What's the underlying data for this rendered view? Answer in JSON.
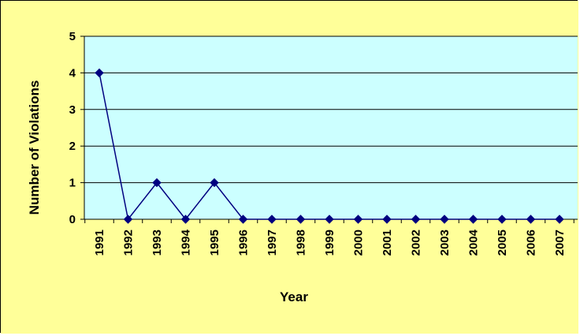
{
  "chart_data": {
    "type": "line",
    "title": "",
    "xlabel": "Year",
    "ylabel": "Number of Violations",
    "categories": [
      "1991",
      "1992",
      "1993",
      "1994",
      "1995",
      "1996",
      "1997",
      "1998",
      "1999",
      "2000",
      "2001",
      "2002",
      "2003",
      "2004",
      "2005",
      "2006",
      "2007"
    ],
    "series": [
      {
        "values": [
          4,
          0,
          1,
          0,
          1,
          0,
          0,
          0,
          0,
          0,
          0,
          0,
          0,
          0,
          0,
          0,
          0
        ]
      }
    ],
    "ylim": [
      0,
      5
    ],
    "yticks": [
      "0",
      "1",
      "2",
      "3",
      "4",
      "5"
    ],
    "grid": true,
    "legend": "none"
  },
  "colors": {
    "chart_background": "#FFFF99",
    "plot_background": "#CCFFFF",
    "series_line": "#000080",
    "gridline": "#000000"
  }
}
